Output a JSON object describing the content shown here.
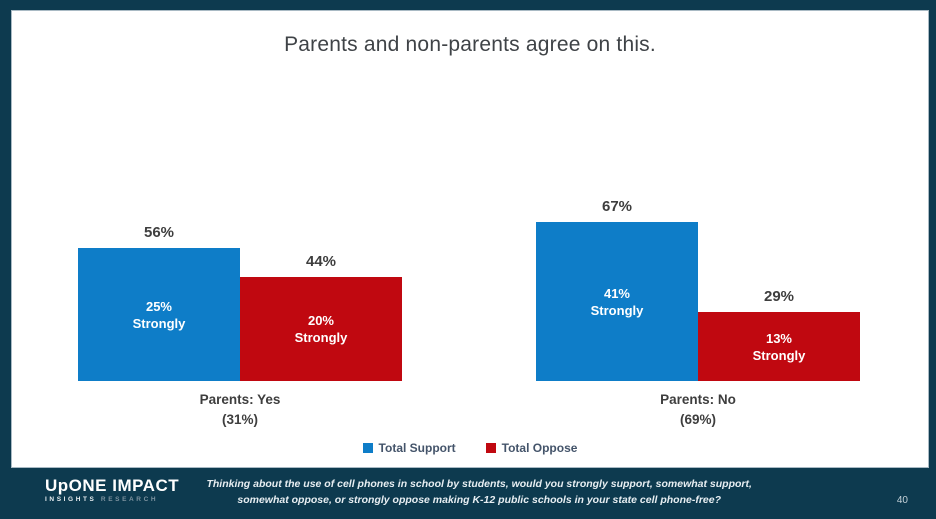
{
  "slide": {
    "title": "Parents and non-parents agree on this.",
    "page_number": "40"
  },
  "footer": {
    "logo_primary": "UpONE IMPACT",
    "logo_sub_left": "INSIGHTS",
    "logo_sub_right": "RESEARCH",
    "question_line1": "Thinking about the use of cell phones in school by students, would you strongly support, somewhat support,",
    "question_line2": "somewhat oppose, or strongly oppose making K-12 public schools in your state cell phone-free?"
  },
  "colors": {
    "support_blue": "#0E7DC8",
    "oppose_red": "#C00810",
    "frame_navy": "#0D3A4F",
    "text_dark": "#3E3E3E",
    "legend_text": "#44546A"
  },
  "legend": [
    {
      "label": "Total Support",
      "color": "#0E7DC8"
    },
    {
      "label": "Total Oppose",
      "color": "#C00810"
    }
  ],
  "chart_data": {
    "type": "bar",
    "title": "Parents and non-parents agree on this.",
    "categories": [
      "Parents: Yes (31%)",
      "Parents: No (69%)"
    ],
    "series": [
      {
        "name": "Total Support",
        "color": "#0E7DC8",
        "values": [
          56,
          67
        ],
        "strongly_values": [
          25,
          41
        ]
      },
      {
        "name": "Total Oppose",
        "color": "#C00810",
        "values": [
          44,
          29
        ],
        "strongly_values": [
          20,
          13
        ]
      }
    ],
    "value_suffix": "%",
    "ylim": [
      0,
      100
    ],
    "grid": false,
    "axes_visible": false,
    "legend_position": "bottom",
    "groups": [
      {
        "label": "Parents: Yes",
        "sublabel": "(31%)",
        "bars": [
          {
            "series": "Total Support",
            "value": 56,
            "value_label": "56%",
            "inner_line1": "25%",
            "inner_line2": "Strongly",
            "color": "#0E7DC8"
          },
          {
            "series": "Total Oppose",
            "value": 44,
            "value_label": "44%",
            "inner_line1": "20%",
            "inner_line2": "Strongly",
            "color": "#C00810"
          }
        ]
      },
      {
        "label": "Parents: No",
        "sublabel": "(69%)",
        "bars": [
          {
            "series": "Total Support",
            "value": 67,
            "value_label": "67%",
            "inner_line1": "41%",
            "inner_line2": "Strongly",
            "color": "#0E7DC8"
          },
          {
            "series": "Total Oppose",
            "value": 29,
            "value_label": "29%",
            "inner_line1": "13%",
            "inner_line2": "Strongly",
            "color": "#C00810"
          }
        ]
      }
    ]
  }
}
